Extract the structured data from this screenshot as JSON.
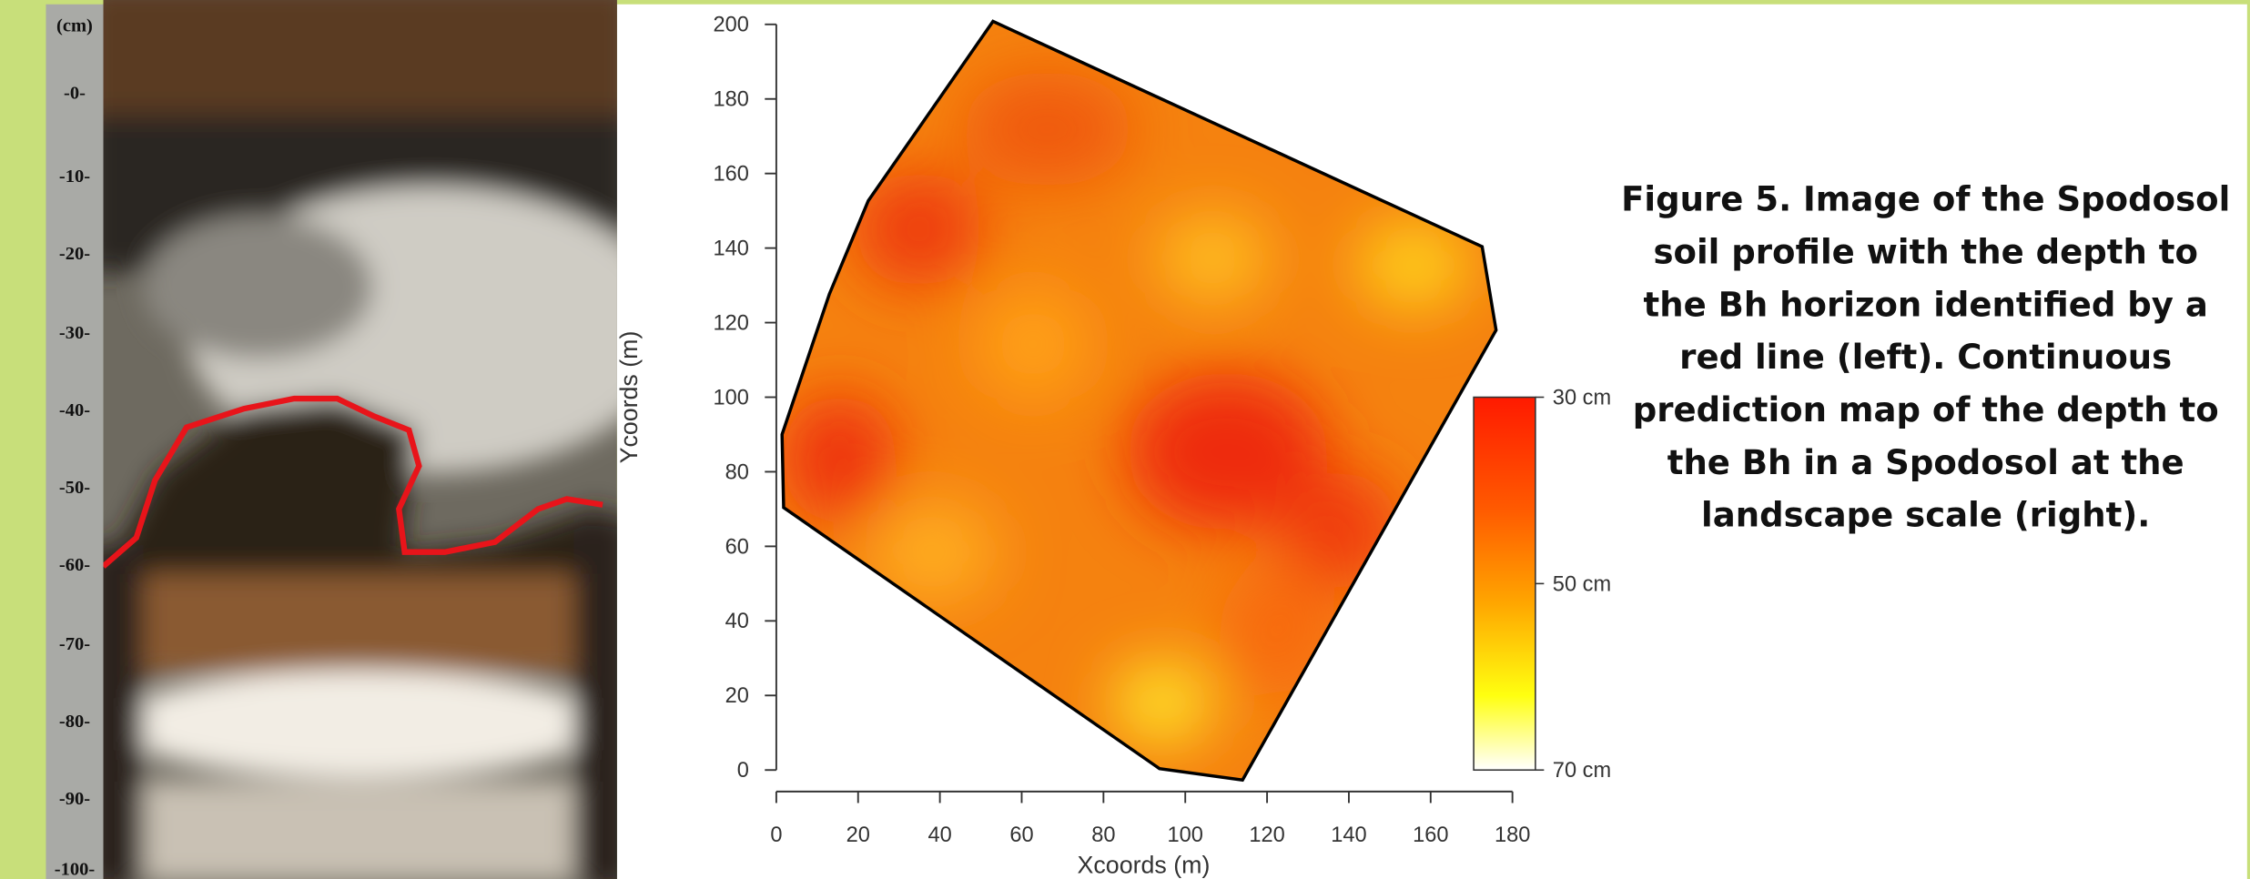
{
  "photo": {
    "ruler_labels": [
      "(cm)",
      "-0-",
      "-10-",
      "-20-",
      "-30-",
      "-40-",
      "-50-",
      "-60-",
      "-70-",
      "-80-",
      "-90-",
      "-100-"
    ]
  },
  "chart_data": {
    "type": "map",
    "xlabel": "Xcoords (m)",
    "ylabel": "Ycoords (m)",
    "xlim": [
      0,
      180
    ],
    "ylim": [
      0,
      200
    ],
    "xticks": [
      0,
      20,
      40,
      60,
      80,
      100,
      120,
      140,
      160,
      180
    ],
    "yticks": [
      0,
      20,
      40,
      60,
      80,
      100,
      120,
      140,
      160,
      180,
      200
    ],
    "boundary": {
      "x": [
        1.4,
        13,
        22.5,
        53,
        172.6,
        176,
        114,
        93.7,
        1.8
      ],
      "y": [
        90,
        127.7,
        152.7,
        200.8,
        140.4,
        118,
        -2.7,
        0.4,
        70.4
      ]
    },
    "clim": [
      30,
      70
    ],
    "cticks": [
      {
        "value": 30,
        "label": "30 cm"
      },
      {
        "value": 50,
        "label": "50 cm"
      },
      {
        "value": 70,
        "label": "70 cm"
      }
    ]
  },
  "caption": [
    "Figure 5. Image of the Spodosol",
    "soil profile with the depth to",
    "the Bh horizon identified  by a",
    "red line (left).  Continuous",
    "prediction map of the depth to",
    "the Bh in a Spodosol at the",
    "landscape scale (right)."
  ]
}
